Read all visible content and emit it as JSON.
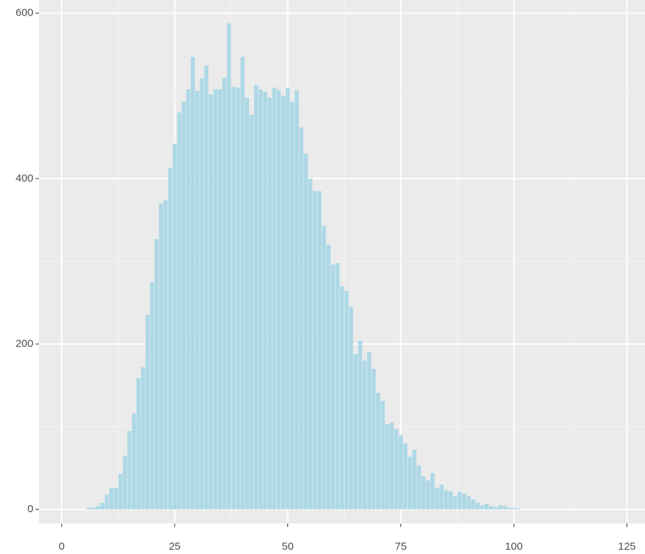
{
  "chart_data": {
    "type": "bar",
    "x": [
      6,
      7,
      8,
      9,
      10,
      11,
      12,
      13,
      14,
      15,
      16,
      17,
      18,
      19,
      20,
      21,
      22,
      23,
      24,
      25,
      26,
      27,
      28,
      29,
      30,
      31,
      32,
      33,
      34,
      35,
      36,
      37,
      38,
      39,
      40,
      41,
      42,
      43,
      44,
      45,
      46,
      47,
      48,
      49,
      50,
      51,
      52,
      53,
      54,
      55,
      56,
      57,
      58,
      59,
      60,
      61,
      62,
      63,
      64,
      65,
      66,
      67,
      68,
      69,
      70,
      71,
      72,
      73,
      74,
      75,
      76,
      77,
      78,
      79,
      80,
      81,
      82,
      83,
      84,
      85,
      86,
      87,
      88,
      89,
      90,
      91,
      92,
      93,
      94,
      95,
      96,
      97,
      98,
      99,
      100,
      101
    ],
    "values": [
      2,
      2,
      4,
      8,
      18,
      26,
      26,
      43,
      65,
      95,
      116,
      159,
      172,
      235,
      275,
      327,
      370,
      374,
      413,
      442,
      480,
      493,
      508,
      547,
      506,
      521,
      537,
      502,
      508,
      508,
      522,
      588,
      511,
      510,
      547,
      498,
      477,
      513,
      508,
      505,
      498,
      510,
      507,
      500,
      510,
      493,
      507,
      462,
      430,
      400,
      385,
      385,
      343,
      320,
      296,
      298,
      270,
      264,
      245,
      188,
      204,
      180,
      190,
      170,
      141,
      131,
      103,
      105,
      97,
      90,
      80,
      64,
      72,
      53,
      40,
      35,
      44,
      26,
      30,
      23,
      22,
      16,
      21,
      19,
      16,
      12,
      8,
      5,
      7,
      4,
      3,
      5,
      4,
      2,
      2,
      1
    ],
    "color": "#add8e6",
    "panel_color": "#ebebeb",
    "xlim": [
      -5,
      129
    ],
    "ylim": [
      -17,
      616
    ],
    "xticks": [
      0,
      25,
      50,
      75,
      100,
      125
    ],
    "yticks": [
      0,
      200,
      400,
      600
    ],
    "x_minor_ticks": [
      12.5,
      37.5,
      62.5,
      87.5,
      112.5
    ],
    "y_minor_ticks": [
      100,
      300,
      500
    ],
    "grid": true
  }
}
